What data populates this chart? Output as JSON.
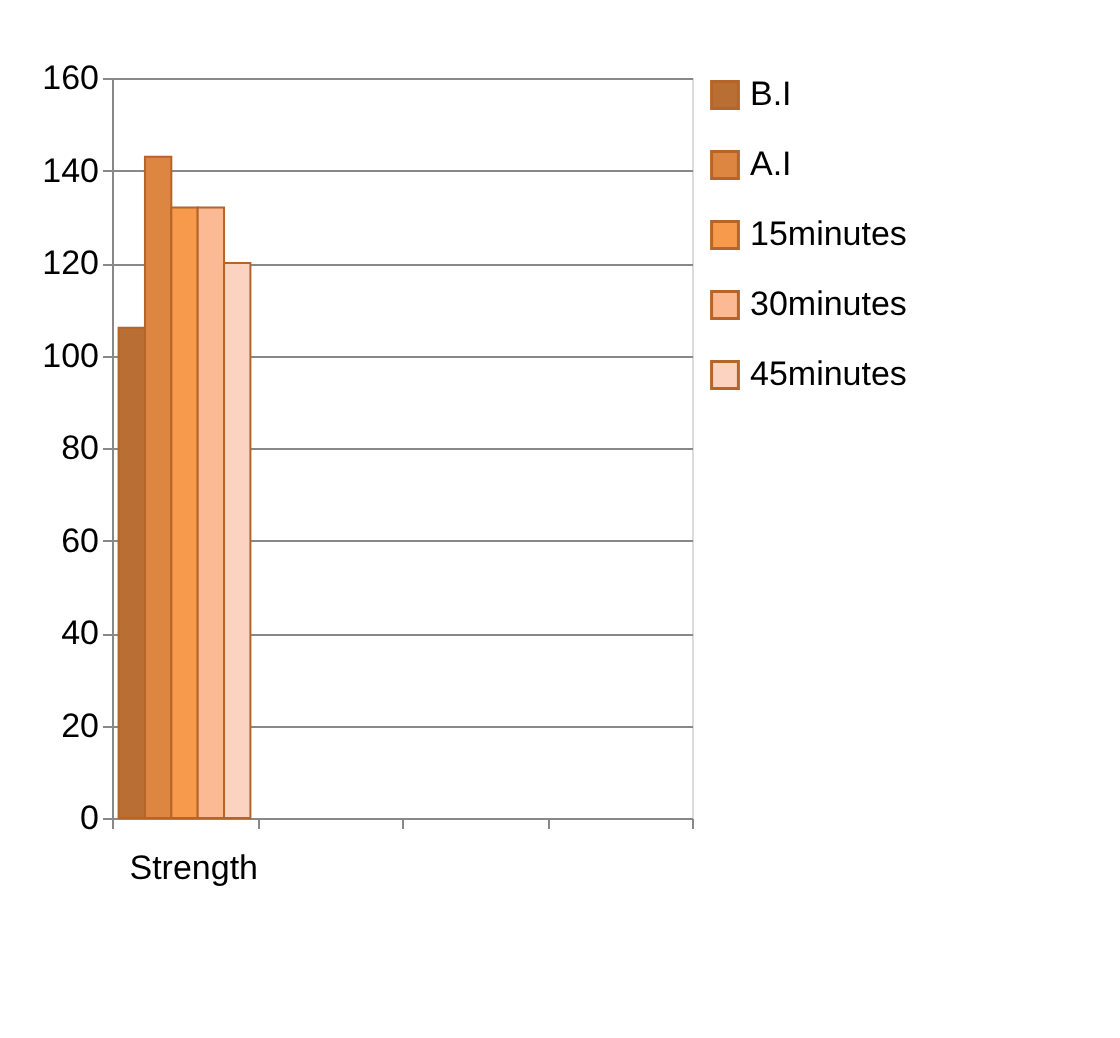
{
  "chart_data": {
    "type": "bar",
    "categories": [
      "Strength",
      null,
      null,
      null
    ],
    "series": [
      {
        "name": "B.I",
        "color": "#b96f33",
        "values": [
          106,
          null,
          null,
          null
        ]
      },
      {
        "name": "A.I",
        "color": "#dc8642",
        "values": [
          143,
          null,
          null,
          null
        ]
      },
      {
        "name": "15minutes",
        "color": "#f79a4b",
        "values": [
          132,
          null,
          null,
          null
        ]
      },
      {
        "name": "30minutes",
        "color": "#fbb994",
        "values": [
          132,
          null,
          null,
          null
        ]
      },
      {
        "name": "45minutes",
        "color": "#fcd3c0",
        "values": [
          120,
          null,
          null,
          null
        ]
      }
    ],
    "ylim": [
      0,
      160
    ],
    "yticks": [
      0,
      20,
      40,
      60,
      80,
      100,
      120,
      140,
      160
    ],
    "grid": "y",
    "legend": "right"
  }
}
